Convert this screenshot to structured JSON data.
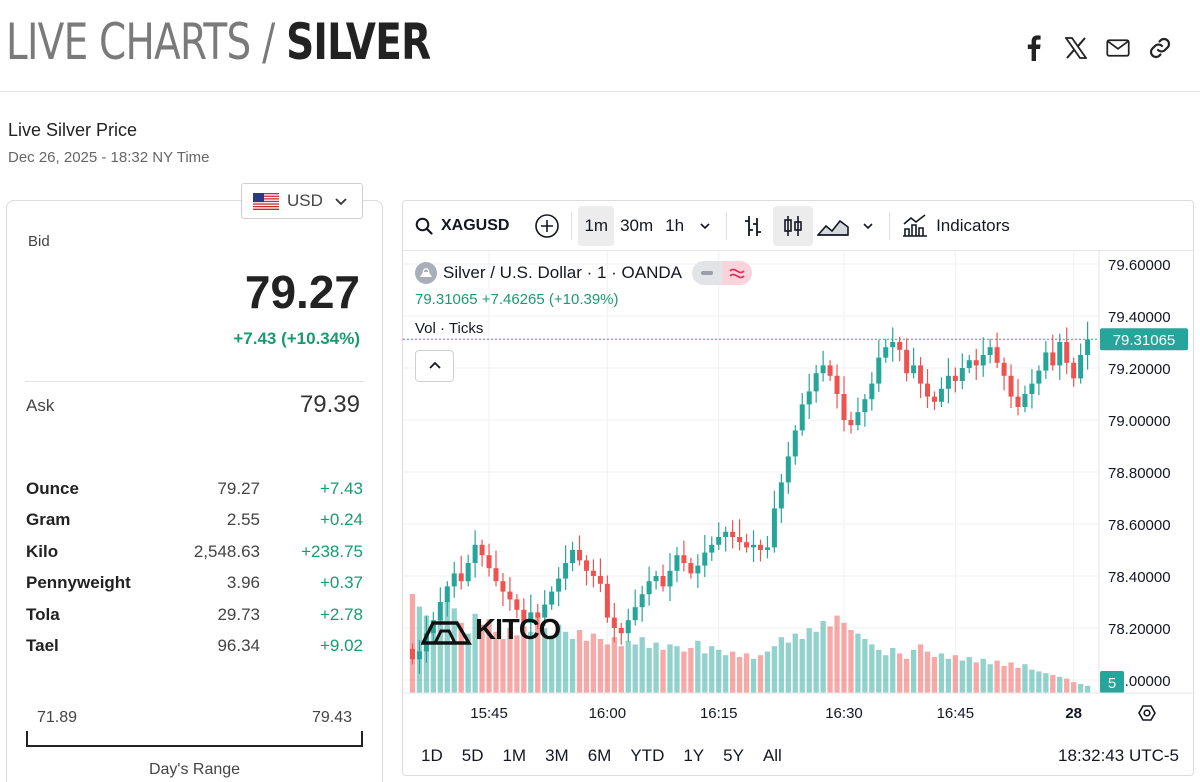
{
  "header": {
    "crumb_base": "LIVE CHARTS",
    "crumb_sep": "/",
    "crumb_current": "SILVER",
    "share": [
      "facebook-icon",
      "x-icon",
      "email-icon",
      "link-icon"
    ]
  },
  "live": {
    "heading": "Live Silver Price",
    "timestamp": "Dec 26, 2025 - 18:32 NY Time"
  },
  "currency": {
    "selected": "USD",
    "flag": "us-flag-icon"
  },
  "price": {
    "bid_label": "Bid",
    "bid": "79.27",
    "bid_change": "+7.43 (+10.34%)",
    "ask_label": "Ask",
    "ask": "79.39",
    "units": [
      {
        "name": "Ounce",
        "price": "79.27",
        "change": "+7.43"
      },
      {
        "name": "Gram",
        "price": "2.55",
        "change": "+0.24"
      },
      {
        "name": "Kilo",
        "price": "2,548.63",
        "change": "+238.75"
      },
      {
        "name": "Pennyweight",
        "price": "3.96",
        "change": "+0.37"
      },
      {
        "name": "Tola",
        "price": "29.73",
        "change": "+2.78"
      },
      {
        "name": "Tael",
        "price": "96.34",
        "change": "+9.02"
      }
    ],
    "range_low": "71.89",
    "range_high": "79.43",
    "range_caption": "Day's Range"
  },
  "toolbar": {
    "symbol": "XAGUSD",
    "intervals": [
      "1m",
      "30m",
      "1h"
    ],
    "active_interval": "1m",
    "indicators_label": "Indicators"
  },
  "legend": {
    "title": "Silver / U.S. Dollar · 1 · OANDA",
    "values": "79.31065 +7.46265 (+10.39%)",
    "vol_label": "Vol · Ticks"
  },
  "bottom": {
    "ranges": [
      "1D",
      "5D",
      "1M",
      "3M",
      "6M",
      "YTD",
      "1Y",
      "5Y",
      "All"
    ],
    "clock": "18:32:43 UTC-5"
  },
  "logo": "KITCO",
  "colors": {
    "up": "#26a69a",
    "down": "#ef5350",
    "accent_green": "#1a9a73"
  },
  "chart_data": {
    "type": "candlestick",
    "title": "Silver / U.S. Dollar · 1 · OANDA",
    "y_ticks": [
      "79.60000",
      "79.40000",
      "79.20000",
      "79.00000",
      "78.80000",
      "78.60000",
      "78.40000",
      "78.20000",
      "78.00000"
    ],
    "x_ticks": [
      "15:45",
      "16:00",
      "16:15",
      "16:30",
      "16:45",
      "28"
    ],
    "last_price": "79.31065",
    "volume_badge": "5",
    "ylim": [
      77.95,
      79.65
    ],
    "start_price": 78.12,
    "closes": [
      78.08,
      78.11,
      78.18,
      78.23,
      78.3,
      78.36,
      78.41,
      78.38,
      78.45,
      78.52,
      78.48,
      78.43,
      78.38,
      78.34,
      78.31,
      78.27,
      78.22,
      78.26,
      78.24,
      78.29,
      78.34,
      78.39,
      78.45,
      78.5,
      78.46,
      78.42,
      78.4,
      78.37,
      78.24,
      78.2,
      78.18,
      78.23,
      78.28,
      78.33,
      78.38,
      78.4,
      78.36,
      78.42,
      78.48,
      78.45,
      78.41,
      78.44,
      78.49,
      78.52,
      78.55,
      78.57,
      78.55,
      78.53,
      78.51,
      78.52,
      78.5,
      78.51,
      78.66,
      78.76,
      78.86,
      78.96,
      79.06,
      79.11,
      79.18,
      79.21,
      79.17,
      79.1,
      79.0,
      78.98,
      79.03,
      79.08,
      79.14,
      79.24,
      79.28,
      79.3,
      79.27,
      79.18,
      79.21,
      79.14,
      79.09,
      79.07,
      79.12,
      79.17,
      79.15,
      79.2,
      79.23,
      79.21,
      79.25,
      79.28,
      79.22,
      79.17,
      79.09,
      79.05,
      79.1,
      79.14,
      79.19,
      79.26,
      79.21,
      79.3,
      79.22,
      79.16,
      79.25,
      79.31
    ],
    "volumes": [
      0.55,
      0.48,
      0.43,
      0.36,
      0.41,
      0.52,
      0.47,
      0.39,
      0.33,
      0.44,
      0.38,
      0.41,
      0.34,
      0.3,
      0.36,
      0.32,
      0.37,
      0.34,
      0.42,
      0.36,
      0.32,
      0.38,
      0.34,
      0.3,
      0.35,
      0.29,
      0.33,
      0.3,
      0.27,
      0.31,
      0.26,
      0.29,
      0.27,
      0.31,
      0.25,
      0.28,
      0.24,
      0.27,
      0.26,
      0.23,
      0.25,
      0.29,
      0.22,
      0.26,
      0.24,
      0.21,
      0.23,
      0.2,
      0.22,
      0.19,
      0.21,
      0.23,
      0.26,
      0.31,
      0.28,
      0.33,
      0.3,
      0.36,
      0.34,
      0.4,
      0.37,
      0.43,
      0.39,
      0.35,
      0.33,
      0.3,
      0.27,
      0.24,
      0.21,
      0.25,
      0.22,
      0.19,
      0.24,
      0.27,
      0.23,
      0.2,
      0.22,
      0.19,
      0.21,
      0.18,
      0.2,
      0.17,
      0.19,
      0.16,
      0.18,
      0.15,
      0.17,
      0.14,
      0.16,
      0.13,
      0.12,
      0.11,
      0.1,
      0.09,
      0.08,
      0.06,
      0.05,
      0.04
    ]
  }
}
